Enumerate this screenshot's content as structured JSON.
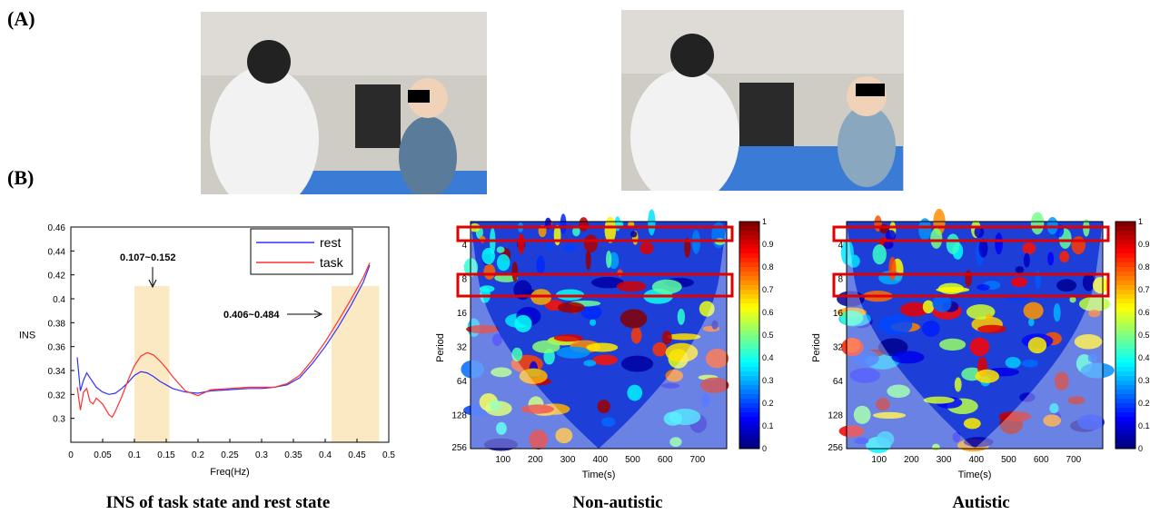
{
  "panel_labels": {
    "a": "(A)",
    "b": "(B)"
  },
  "captions": {
    "ins_plot": "INS of task state and rest state",
    "non_autistic": "Non-autistic",
    "autistic": "Autistic"
  },
  "colors": {
    "rest": "#3030ff",
    "task": "#ff3030",
    "band_highlight": "#fbe9c4",
    "roi_box": "#e00000"
  },
  "chart_data": [
    {
      "type": "line",
      "title": "",
      "xlabel": "Freq(Hz)",
      "ylabel": "INS",
      "xlim": [
        0,
        0.5
      ],
      "ylim": [
        0.28,
        0.46
      ],
      "x_ticks": [
        "0",
        "0.05",
        "0.1",
        "0.15",
        "0.2",
        "0.25",
        "0.3",
        "0.35",
        "0.4",
        "0.45",
        "0.5"
      ],
      "y_ticks": [
        "0.3",
        "0.32",
        "0.34",
        "0.36",
        "0.38",
        "0.4",
        "0.42",
        "0.44",
        "0.46"
      ],
      "y_tick_labels": [
        "0.3",
        "0.32",
        "0.34",
        "0.36",
        "0.38",
        "0.4",
        "0.42",
        "0.44",
        "0.46"
      ],
      "legend_position": "top-right",
      "annotations": [
        {
          "text": "0.107~0.152",
          "band": [
            0.1,
            0.155
          ]
        },
        {
          "text": "0.406~0.484",
          "band": [
            0.41,
            0.485
          ]
        }
      ],
      "series": [
        {
          "name": "rest",
          "x": [
            0.01,
            0.015,
            0.02,
            0.025,
            0.03,
            0.04,
            0.05,
            0.06,
            0.07,
            0.08,
            0.09,
            0.1,
            0.11,
            0.12,
            0.13,
            0.14,
            0.15,
            0.16,
            0.18,
            0.2,
            0.22,
            0.25,
            0.28,
            0.3,
            0.32,
            0.34,
            0.36,
            0.38,
            0.4,
            0.42,
            0.44,
            0.46,
            0.47
          ],
          "y": [
            0.351,
            0.323,
            0.332,
            0.338,
            0.334,
            0.326,
            0.322,
            0.32,
            0.321,
            0.325,
            0.33,
            0.336,
            0.339,
            0.338,
            0.335,
            0.331,
            0.328,
            0.325,
            0.322,
            0.321,
            0.323,
            0.324,
            0.325,
            0.325,
            0.326,
            0.328,
            0.334,
            0.346,
            0.36,
            0.376,
            0.394,
            0.414,
            0.428
          ]
        },
        {
          "name": "task",
          "x": [
            0.01,
            0.015,
            0.02,
            0.025,
            0.03,
            0.035,
            0.04,
            0.05,
            0.06,
            0.065,
            0.07,
            0.08,
            0.09,
            0.1,
            0.11,
            0.12,
            0.13,
            0.14,
            0.15,
            0.16,
            0.18,
            0.2,
            0.22,
            0.25,
            0.28,
            0.3,
            0.32,
            0.34,
            0.36,
            0.38,
            0.4,
            0.42,
            0.44,
            0.46,
            0.47
          ],
          "y": [
            0.326,
            0.307,
            0.322,
            0.325,
            0.314,
            0.312,
            0.317,
            0.312,
            0.303,
            0.301,
            0.306,
            0.318,
            0.332,
            0.344,
            0.352,
            0.355,
            0.353,
            0.348,
            0.342,
            0.335,
            0.323,
            0.319,
            0.324,
            0.325,
            0.326,
            0.326,
            0.326,
            0.329,
            0.336,
            0.349,
            0.364,
            0.381,
            0.399,
            0.418,
            0.43
          ]
        }
      ]
    },
    {
      "type": "heatmap",
      "title": "",
      "xlabel": "Time(s)",
      "ylabel": "Period",
      "x_ticks": [
        "100",
        "200",
        "300",
        "400",
        "500",
        "600",
        "700"
      ],
      "y_ticks": [
        "4",
        "8",
        "16",
        "32",
        "64",
        "128",
        "256"
      ],
      "colorbar_ticks": [
        "0",
        "0.1",
        "0.2",
        "0.3",
        "0.4",
        "0.5",
        "0.6",
        "0.7",
        "0.8",
        "0.9",
        "1"
      ],
      "clim": [
        0,
        1
      ]
    },
    {
      "type": "heatmap",
      "title": "",
      "xlabel": "Time(s)",
      "ylabel": "Period",
      "x_ticks": [
        "100",
        "200",
        "300",
        "400",
        "500",
        "600",
        "700"
      ],
      "y_ticks": [
        "4",
        "8",
        "16",
        "32",
        "64",
        "128",
        "256"
      ],
      "colorbar_ticks": [
        "0",
        "0.1",
        "0.2",
        "0.3",
        "0.4",
        "0.5",
        "0.6",
        "0.7",
        "0.8",
        "0.9",
        "1"
      ],
      "clim": [
        0,
        1
      ]
    }
  ]
}
